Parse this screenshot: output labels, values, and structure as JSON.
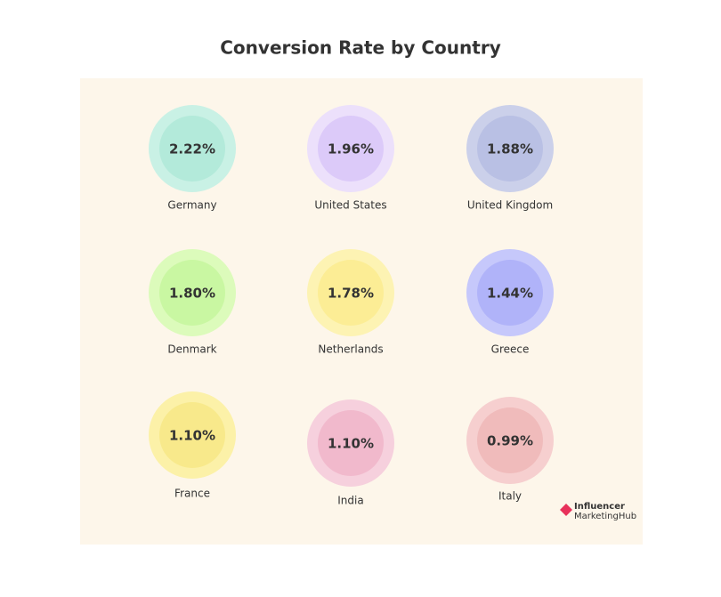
{
  "title": "Conversion Rate by Country",
  "items": [
    {
      "label": "Germany",
      "value": "2.22%",
      "outer_color": "#c9f1e5",
      "inner_color": "#b3eada"
    },
    {
      "label": "United States",
      "value": "1.96%",
      "outer_color": "#ece0fb",
      "inner_color": "#dccaf9"
    },
    {
      "label": "United Kingdom",
      "value": "1.88%",
      "outer_color": "#cbd0ea",
      "inner_color": "#b9c0e4"
    },
    {
      "label": "Denmark",
      "value": "1.80%",
      "outer_color": "#dcfbbb",
      "inner_color": "#c9f7a2"
    },
    {
      "label": "Netherlands",
      "value": "1.78%",
      "outer_color": "#fdf3b3",
      "inner_color": "#fced95"
    },
    {
      "label": "Greece",
      "value": "1.44%",
      "outer_color": "#c6c8fb",
      "inner_color": "#b0b3f9"
    },
    {
      "label": "France",
      "value": "1.10%",
      "outer_color": "#fcf1a8",
      "inner_color": "#f8e98b"
    },
    {
      "label": "India",
      "value": "1.10%",
      "outer_color": "#f6d0dd",
      "inner_color": "#f1b9cc"
    },
    {
      "label": "Italy",
      "value": "0.99%",
      "outer_color": "#f6cfcf",
      "inner_color": "#f0bbbb"
    }
  ],
  "logo": {
    "line1": "Influencer",
    "line2": "MarketingHub"
  }
}
